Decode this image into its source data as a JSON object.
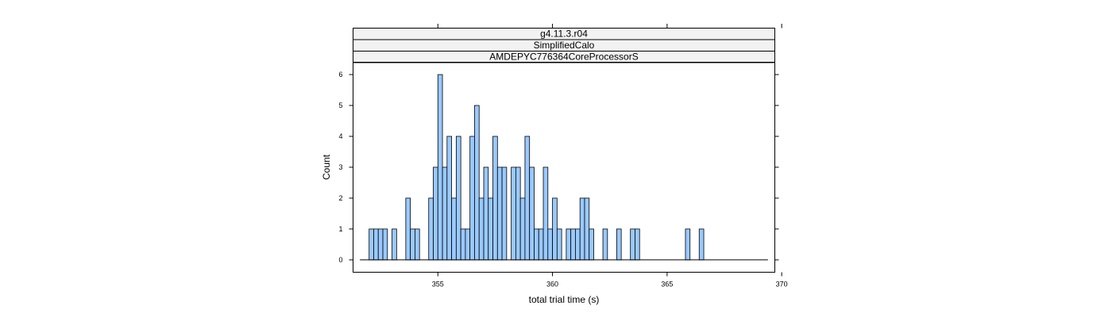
{
  "chart_data": {
    "type": "bar",
    "subtype": "histogram",
    "strips": [
      "g4.11.3.r04",
      "SimplifiedCalo",
      "AMDEPYC776364CoreProcessorS"
    ],
    "xlabel": "total trial time (s)",
    "ylabel": "Count",
    "xlim": [
      351.3,
      369.7
    ],
    "ylim": [
      -0.4,
      6.4
    ],
    "x_ticks": [
      355,
      360,
      365,
      370
    ],
    "y_ticks": [
      0,
      1,
      2,
      3,
      4,
      5,
      6
    ],
    "bin_width": 0.2,
    "bin_start": 351.6,
    "bin_counts": [
      0,
      0,
      1,
      1,
      1,
      1,
      0,
      1,
      0,
      0,
      2,
      1,
      1,
      0,
      0,
      2,
      3,
      6,
      3,
      4,
      2,
      4,
      1,
      1,
      4,
      5,
      2,
      3,
      2,
      4,
      3,
      3,
      0,
      3,
      3,
      2,
      4,
      3,
      1,
      1,
      3,
      1,
      2,
      1,
      0,
      1,
      1,
      1,
      2,
      2,
      1,
      0,
      0,
      1,
      0,
      0,
      1,
      0,
      0,
      1,
      1,
      0,
      0,
      0,
      0,
      0,
      0,
      0,
      0,
      0,
      0,
      1,
      0,
      0,
      1,
      0,
      0,
      0,
      0,
      0,
      0,
      0,
      0,
      0,
      0,
      0,
      0,
      0,
      0
    ],
    "bar_color": "#99c9ff",
    "bar_stroke": "#000000",
    "grid": false
  }
}
